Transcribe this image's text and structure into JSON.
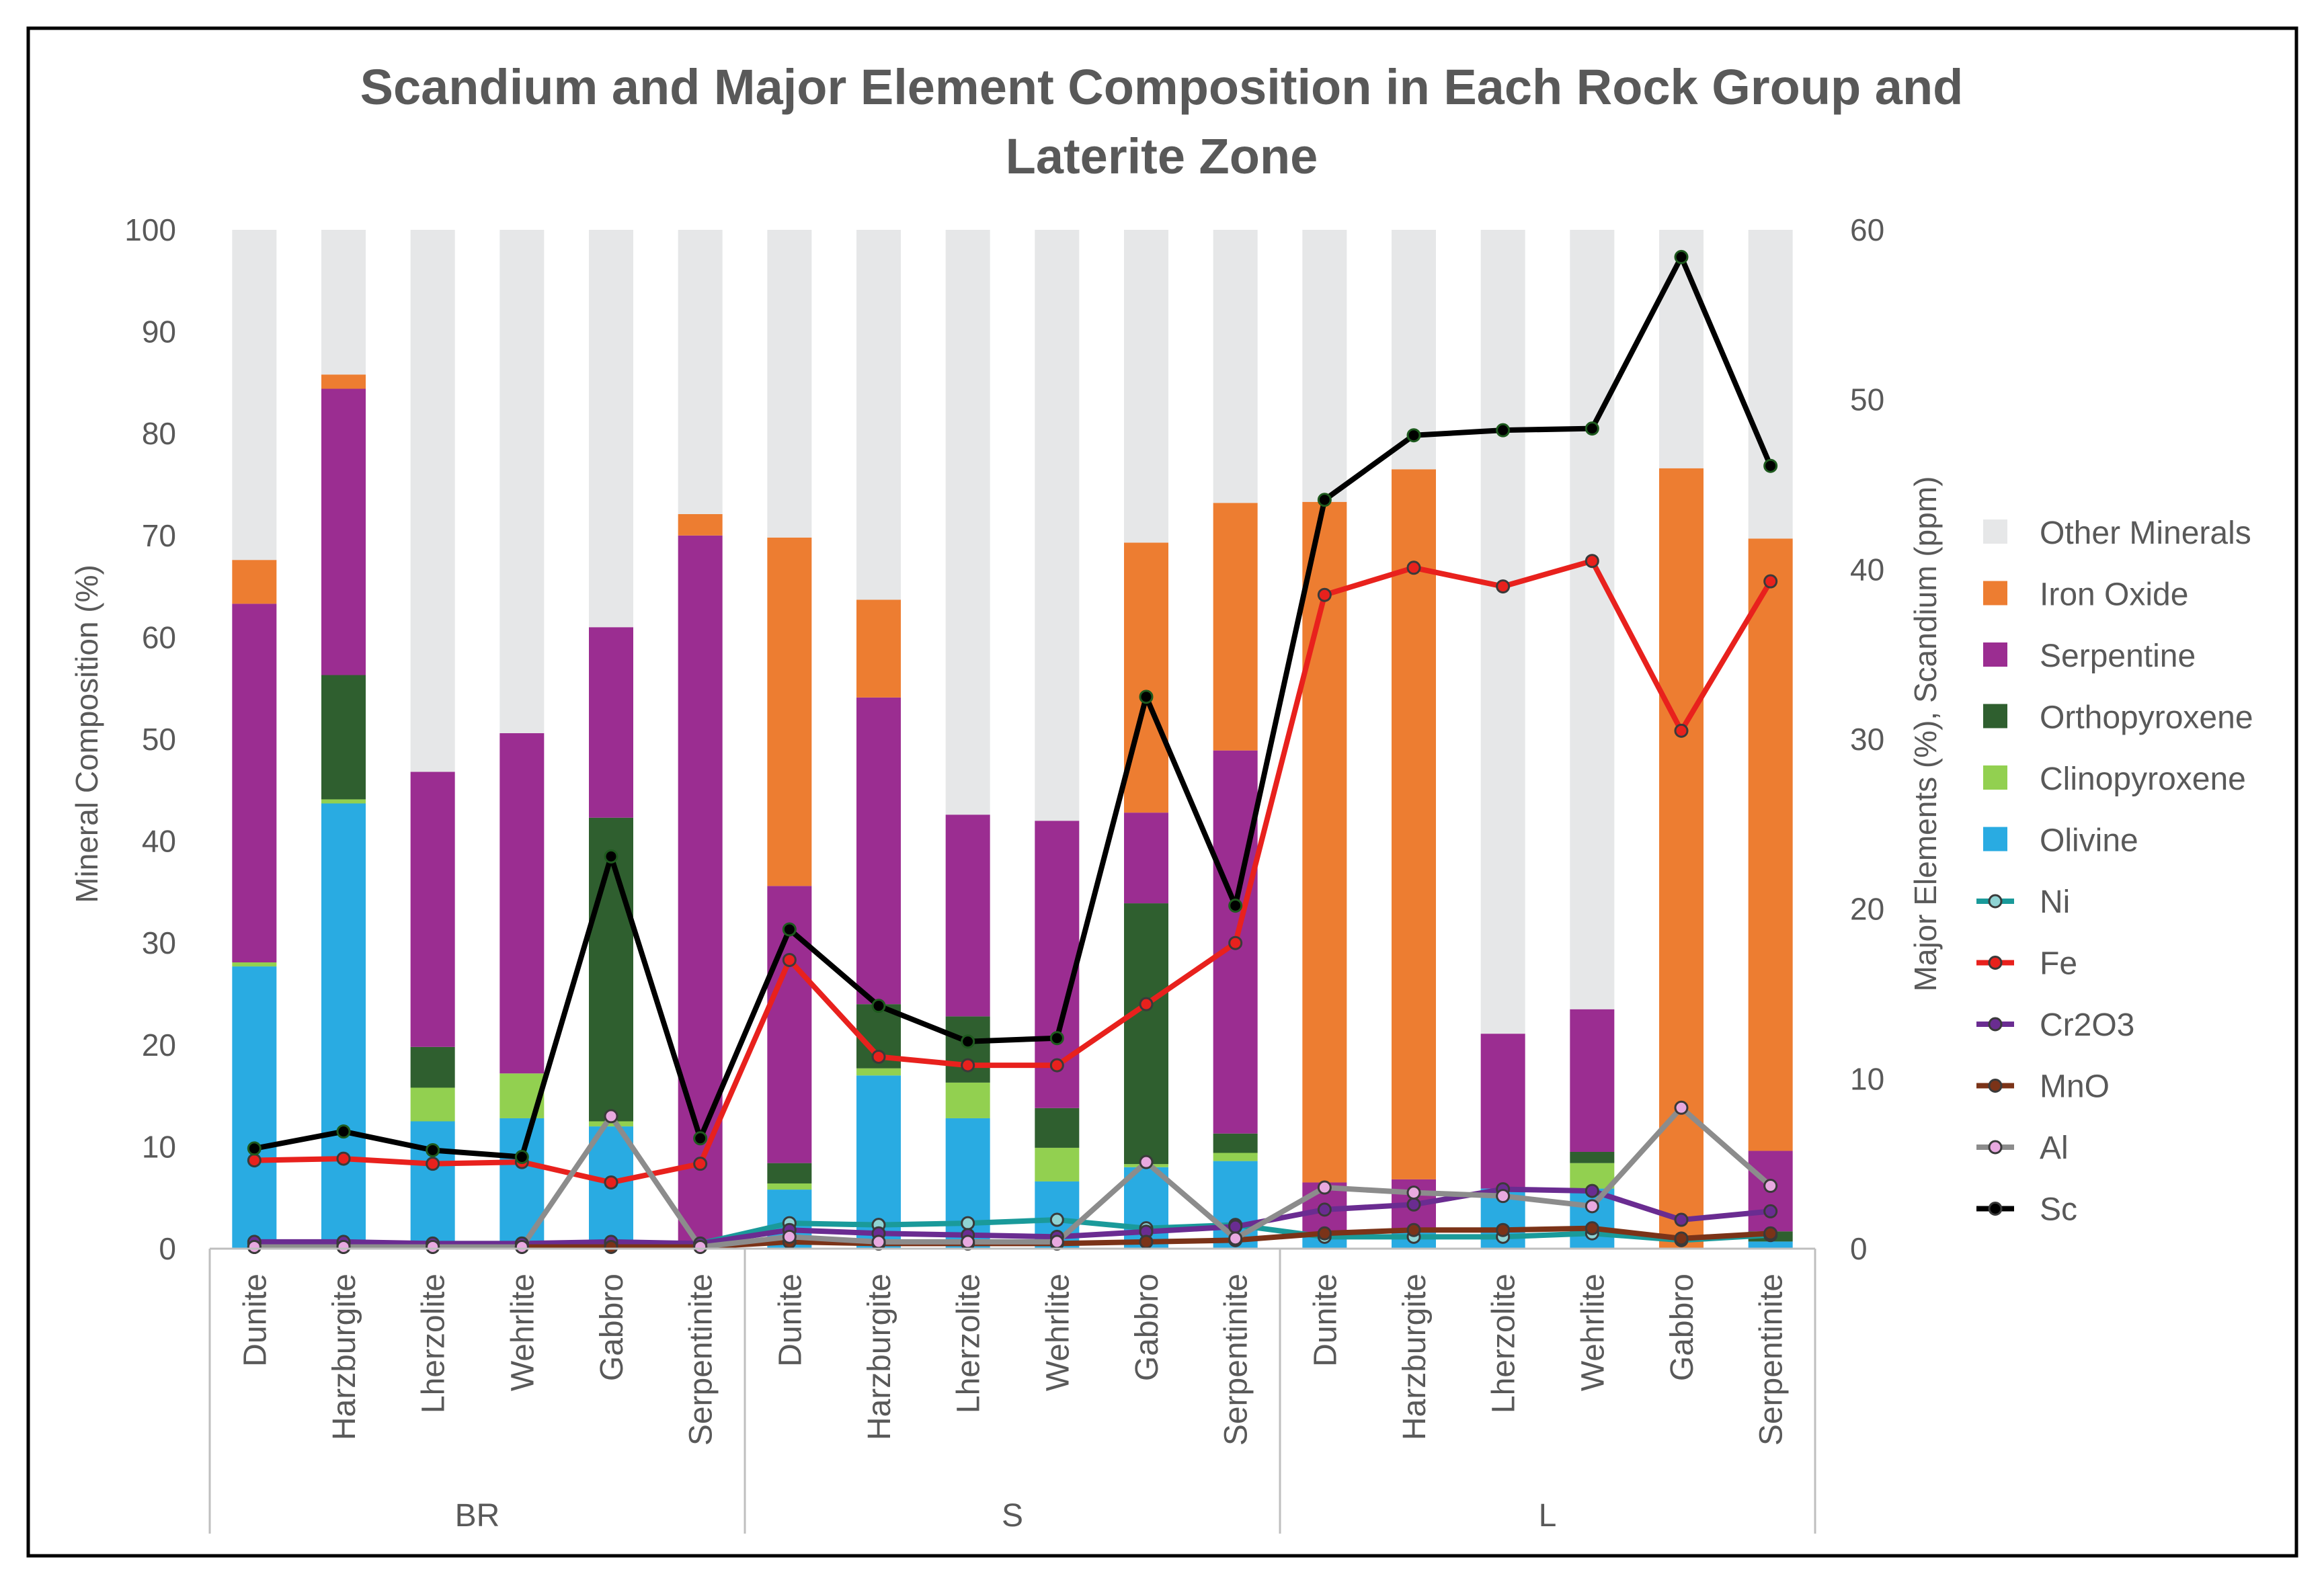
{
  "chart_data": {
    "type": "bar",
    "subtype": "stacked bar with line overlay (secondary axis)",
    "title_line1": "Scandium and Major Element Composition in  Each Rock Group and",
    "title_line2": "Laterite Zone",
    "ylabel": "Mineral Composition (%)",
    "y2label": "Major Elements (%), Scandium (ppm)",
    "ylim": [
      0,
      100
    ],
    "y2lim": [
      0,
      60
    ],
    "yticks": [
      "0",
      "10",
      "20",
      "30",
      "40",
      "50",
      "60",
      "70",
      "80",
      "90",
      "100"
    ],
    "y2ticks": [
      "0",
      "10",
      "20",
      "30",
      "40",
      "50",
      "60"
    ],
    "groups": [
      {
        "name": "BR",
        "categories": [
          "Dunite",
          "Harzburgite",
          "Lherzolite",
          "Wehrlite",
          "Gabbro",
          "Serpentinite"
        ]
      },
      {
        "name": "S",
        "categories": [
          "Dunite",
          "Harzburgite",
          "Lherzolite",
          "Wehrlite",
          "Gabbro",
          "Serpentinite"
        ]
      },
      {
        "name": "L",
        "categories": [
          "Dunite",
          "Harzburgite",
          "Lherzolite",
          "Wehrlite",
          "Gabbro",
          "Serpentinite"
        ]
      }
    ],
    "bar_series": [
      {
        "name": "Olivine",
        "color": "#29ABE2",
        "values": [
          27.7,
          43.7,
          12.5,
          12.8,
          12.0,
          0.0,
          5.8,
          17.0,
          12.8,
          6.6,
          8.0,
          8.6,
          1.5,
          1.6,
          5.9,
          5.9,
          0.0,
          0.7
        ]
      },
      {
        "name": "Clinopyroxene",
        "color": "#92D050",
        "values": [
          0.4,
          0.4,
          3.3,
          4.4,
          0.5,
          0.0,
          0.6,
          0.7,
          3.5,
          3.3,
          0.3,
          0.8,
          0.0,
          0.0,
          0.0,
          2.5,
          0.0,
          0.0
        ]
      },
      {
        "name": "Orthopyroxene",
        "color": "#2F5F2F",
        "values": [
          0.0,
          12.2,
          4.0,
          0.0,
          29.8,
          0.0,
          2.0,
          6.3,
          6.5,
          3.9,
          25.6,
          1.9,
          0.0,
          0.0,
          0.0,
          1.1,
          0.0,
          1.0
        ]
      },
      {
        "name": "Serpentine",
        "color": "#9B2D91",
        "values": [
          35.2,
          28.1,
          27.0,
          33.4,
          18.7,
          70.0,
          27.2,
          30.1,
          19.8,
          28.2,
          8.9,
          37.6,
          5.0,
          5.2,
          15.2,
          14.0,
          0.0,
          7.9
        ]
      },
      {
        "name": "Iron Oxide",
        "color": "#ED7D31",
        "values": [
          4.3,
          1.4,
          0.0,
          0.0,
          0.0,
          2.1,
          34.2,
          9.6,
          0.0,
          0.0,
          26.5,
          24.3,
          66.8,
          69.7,
          0.0,
          0.0,
          76.6,
          60.1
        ]
      },
      {
        "name": "Other Minerals",
        "color": "#E6E7E8",
        "values": [
          32.4,
          14.2,
          53.2,
          49.4,
          39.0,
          27.9,
          30.2,
          36.3,
          57.4,
          58.0,
          30.7,
          26.8,
          26.7,
          23.5,
          78.9,
          76.5,
          23.4,
          30.3
        ]
      }
    ],
    "line_series": [
      {
        "name": "Ni",
        "color": "#1A9A9A",
        "values": [
          0.3,
          0.3,
          0.3,
          0.3,
          0.3,
          0.3,
          1.5,
          1.4,
          1.5,
          1.7,
          1.2,
          1.4,
          0.7,
          0.7,
          0.7,
          0.9,
          0.5,
          0.8
        ]
      },
      {
        "name": "Fe",
        "color": "#E8211D",
        "values": [
          5.2,
          5.3,
          5.0,
          5.1,
          3.9,
          5.0,
          17.0,
          11.3,
          10.8,
          10.8,
          14.4,
          18.0,
          38.5,
          40.1,
          39.0,
          40.5,
          30.5,
          39.3
        ]
      },
      {
        "name": "Cr2O3",
        "color": "#6A2C91",
        "values": [
          0.4,
          0.4,
          0.3,
          0.3,
          0.4,
          0.3,
          1.1,
          0.9,
          0.8,
          0.7,
          1.0,
          1.3,
          2.3,
          2.6,
          3.5,
          3.4,
          1.7,
          2.2
        ]
      },
      {
        "name": "MnO",
        "color": "#7B3318",
        "values": [
          0.1,
          0.1,
          0.1,
          0.1,
          0.1,
          0.1,
          0.4,
          0.3,
          0.3,
          0.3,
          0.4,
          0.5,
          0.9,
          1.1,
          1.1,
          1.2,
          0.6,
          0.9
        ]
      },
      {
        "name": "Al",
        "color": "#8C8C8C",
        "values": [
          0.1,
          0.1,
          0.1,
          0.1,
          7.8,
          0.1,
          0.7,
          0.4,
          0.4,
          0.4,
          5.1,
          0.6,
          3.6,
          3.3,
          3.1,
          2.5,
          8.3,
          3.7
        ]
      },
      {
        "name": "Sc",
        "color": "#000000",
        "values": [
          5.9,
          6.9,
          5.8,
          5.4,
          23.1,
          6.5,
          18.8,
          14.3,
          12.2,
          12.4,
          32.5,
          20.2,
          44.1,
          47.9,
          48.2,
          48.3,
          58.4,
          46.1
        ]
      }
    ],
    "legend": [
      "Other Minerals",
      "Iron Oxide",
      "Serpentine",
      "Orthopyroxene",
      "Clinopyroxene",
      "Olivine",
      "Ni",
      "Fe",
      "Cr2O3",
      "MnO",
      "Al",
      "Sc"
    ],
    "legend_placement": "right",
    "grid": false
  }
}
